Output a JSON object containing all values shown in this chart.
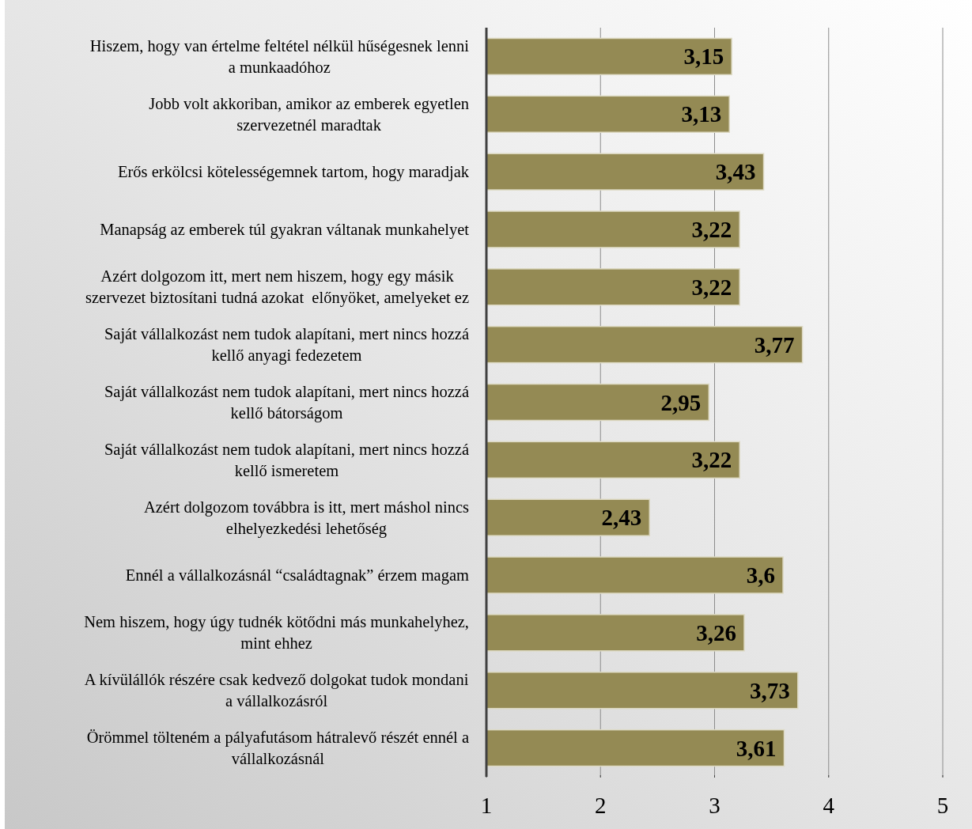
{
  "chart_data": {
    "type": "bar",
    "orientation": "horizontal",
    "categories": [
      "Hiszem, hogy van értelme feltétel nélkül hűségesnek lenni\na munkaadóhoz",
      "Jobb volt akkoriban, amikor az emberek egyetlen\nszervezetnél maradtak",
      "Erős erkölcsi kötelességemnek tartom, hogy maradjak",
      "Manapság az emberek túl gyakran váltanak munkahelyet",
      "Azért dolgozom itt, mert nem hiszem, hogy egy másik\nszervezet biztosítani tudná azokat  előnyöket, amelyeket ez",
      "Saját vállalkozást nem tudok alapítani, mert nincs hozzá\nkellő anyagi fedezetem",
      "Saját vállalkozást nem tudok alapítani, mert nincs hozzá\nkellő bátorságom",
      "Saját vállalkozást nem tudok alapítani, mert nincs hozzá\nkellő ismeretem",
      "Azért dolgozom továbbra is itt, mert máshol nincs\nelhelyezkedési lehetőség",
      "Ennél a vállalkozásnál “családtagnak” érzem magam",
      "Nem hiszem, hogy úgy tudnék kötődni más munkahelyhez,\nmint ehhez",
      "A kívülállók részére csak kedvező dolgokat tudok mondani\na vállalkozásról",
      "Örömmel tölteném a pályafutásom hátralevő részét ennél a\nvállalkozásnál"
    ],
    "values": [
      3.15,
      3.13,
      3.43,
      3.22,
      3.22,
      3.77,
      2.95,
      3.22,
      2.43,
      3.6,
      3.26,
      3.73,
      3.61
    ],
    "value_labels": [
      "3,15",
      "3,13",
      "3,43",
      "3,22",
      "3,22",
      "3,77",
      "2,95",
      "3,22",
      "2,43",
      "3,6",
      "3,26",
      "3,73",
      "3,61"
    ],
    "color": "#948a54",
    "xlim": [
      1,
      5
    ],
    "xticks": [
      1,
      2,
      3,
      4,
      5
    ],
    "grid": "x"
  }
}
